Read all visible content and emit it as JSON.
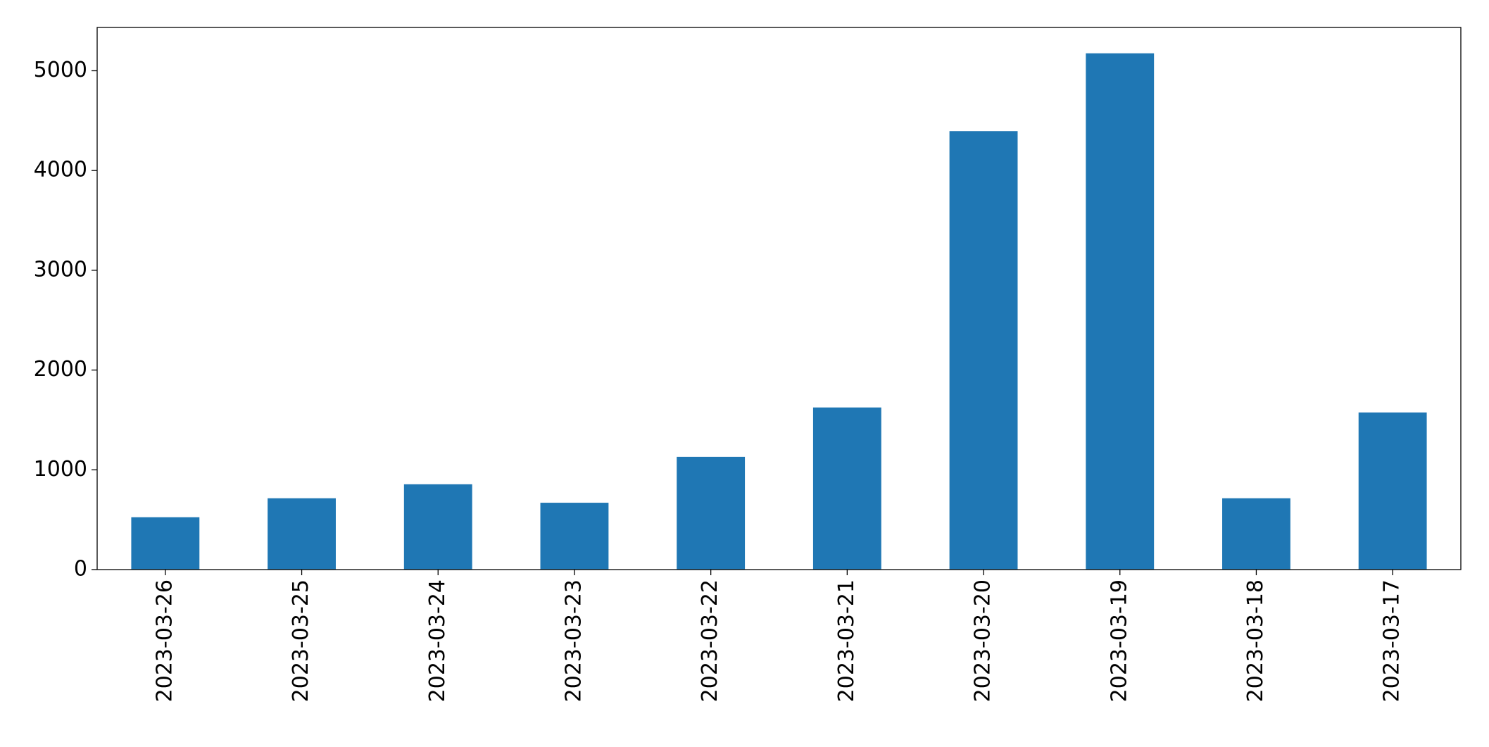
{
  "chart_data": {
    "type": "bar",
    "categories": [
      "2023-03-26",
      "2023-03-25",
      "2023-03-24",
      "2023-03-23",
      "2023-03-22",
      "2023-03-21",
      "2023-03-20",
      "2023-03-19",
      "2023-03-18",
      "2023-03-17"
    ],
    "values": [
      525,
      715,
      855,
      670,
      1130,
      1625,
      4395,
      5175,
      715,
      1575
    ],
    "color": "#1f77b4",
    "ylim": [
      0,
      5434
    ],
    "yticks": [
      0,
      1000,
      2000,
      3000,
      4000,
      5000
    ],
    "grid": false
  }
}
